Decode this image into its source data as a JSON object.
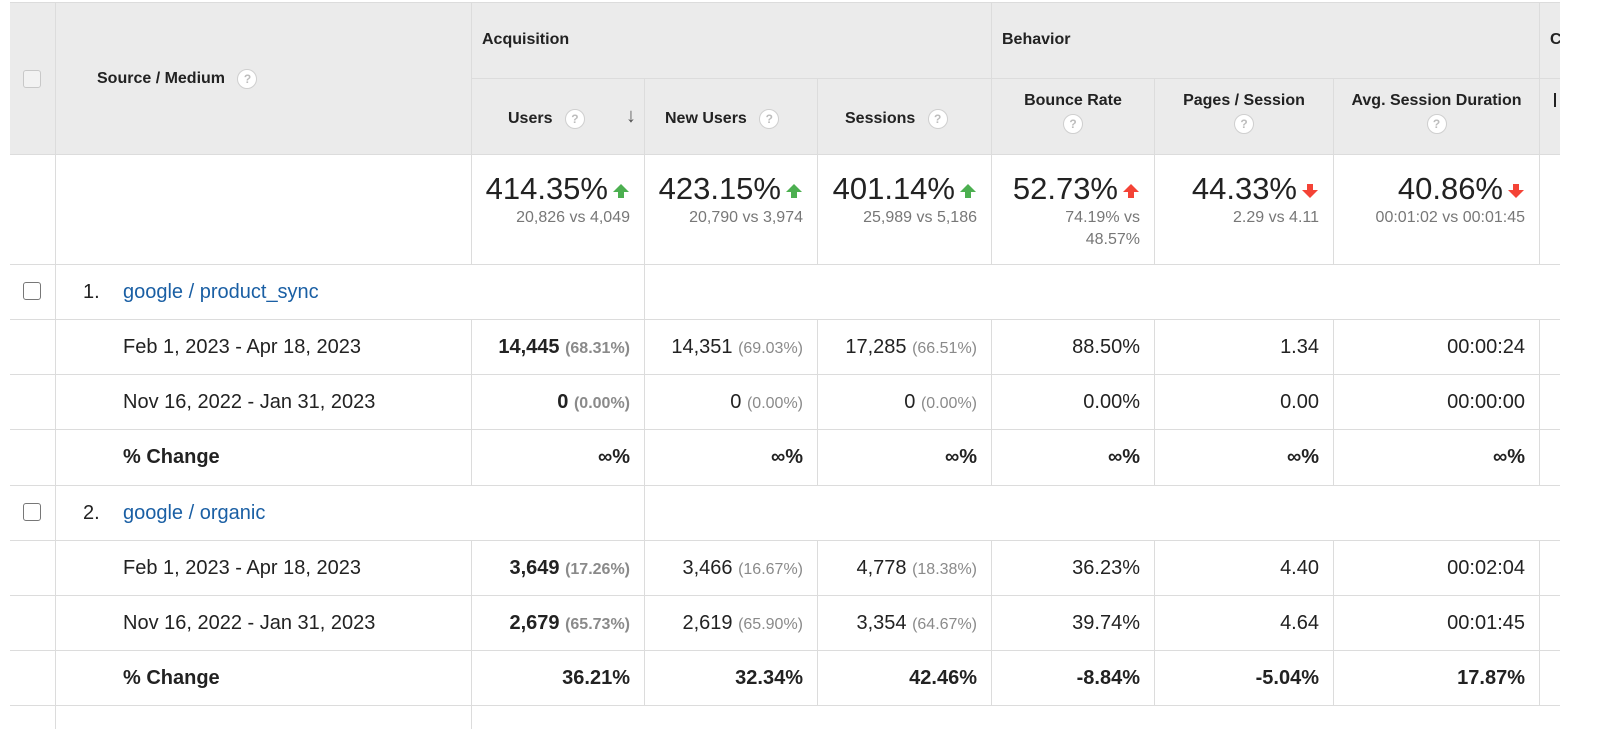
{
  "columns": {
    "source_medium": "Source / Medium",
    "acquisition": "Acquisition",
    "behavior": "Behavior",
    "conversions_partial": "C",
    "users": "Users",
    "new_users": "New Users",
    "sessions": "Sessions",
    "bounce_rate": "Bounce Rate",
    "pages_session": "Pages / Session",
    "avg_session_duration": "Avg. Session Duration",
    "help_glyph": "?",
    "sort_glyph": "↓"
  },
  "summary": {
    "users": {
      "main": "414.35%",
      "sub": "20,826 vs 4,049",
      "trend": "up-green"
    },
    "new_users": {
      "main": "423.15%",
      "sub": "20,790 vs 3,974",
      "trend": "up-green"
    },
    "sessions": {
      "main": "401.14%",
      "sub": "25,989 vs 5,186",
      "trend": "up-green"
    },
    "bounce_rate": {
      "main": "52.73%",
      "sub1": "74.19% vs",
      "sub2": "48.57%",
      "trend": "up-red"
    },
    "pages_session": {
      "main": "44.33%",
      "sub": "2.29 vs 4.11",
      "trend": "down-red"
    },
    "avg_session_duration": {
      "main": "40.86%",
      "sub": "00:01:02 vs 00:01:45",
      "trend": "down-red"
    }
  },
  "rows": [
    {
      "index": "1.",
      "name": "google / product_sync",
      "periods": [
        {
          "label": "Feb 1, 2023 - Apr 18, 2023",
          "users": "14,445",
          "users_pct": "(68.31%)",
          "new_users": "14,351",
          "new_users_pct": "(69.03%)",
          "sessions": "17,285",
          "sessions_pct": "(66.51%)",
          "bounce_rate": "88.50%",
          "pages_session": "1.34",
          "avg_duration": "00:00:24"
        },
        {
          "label": "Nov 16, 2022 - Jan 31, 2023",
          "users": "0",
          "users_pct": "(0.00%)",
          "new_users": "0",
          "new_users_pct": "(0.00%)",
          "sessions": "0",
          "sessions_pct": "(0.00%)",
          "bounce_rate": "0.00%",
          "pages_session": "0.00",
          "avg_duration": "00:00:00"
        }
      ],
      "change": {
        "label": "% Change",
        "users": "∞%",
        "new_users": "∞%",
        "sessions": "∞%",
        "bounce_rate": "∞%",
        "pages_session": "∞%",
        "avg_duration": "∞%"
      }
    },
    {
      "index": "2.",
      "name": "google / organic",
      "periods": [
        {
          "label": "Feb 1, 2023 - Apr 18, 2023",
          "users": "3,649",
          "users_pct": "(17.26%)",
          "new_users": "3,466",
          "new_users_pct": "(16.67%)",
          "sessions": "4,778",
          "sessions_pct": "(18.38%)",
          "bounce_rate": "36.23%",
          "pages_session": "4.40",
          "avg_duration": "00:02:04"
        },
        {
          "label": "Nov 16, 2022 - Jan 31, 2023",
          "users": "2,679",
          "users_pct": "(65.73%)",
          "new_users": "2,619",
          "new_users_pct": "(65.90%)",
          "sessions": "3,354",
          "sessions_pct": "(64.67%)",
          "bounce_rate": "39.74%",
          "pages_session": "4.64",
          "avg_duration": "00:01:45"
        }
      ],
      "change": {
        "label": "% Change",
        "users": "36.21%",
        "new_users": "32.34%",
        "sessions": "42.46%",
        "bounce_rate": "-8.84%",
        "pages_session": "-5.04%",
        "avg_duration": "17.87%"
      }
    }
  ],
  "colors": {
    "up_good": "#4caf50",
    "bad": "#f44336",
    "link": "#1a5fa4"
  }
}
